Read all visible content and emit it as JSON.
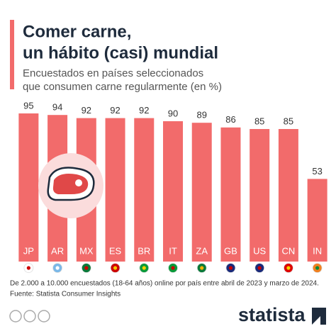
{
  "chart_data": {
    "type": "bar",
    "title": [
      "Comer carne,",
      "un hábito (casi) mundial"
    ],
    "subtitle": [
      "Encuestados en países seleccionados",
      "que consumen carne regularmente (en %)"
    ],
    "categories": [
      "JP",
      "AR",
      "MX",
      "ES",
      "BR",
      "IT",
      "ZA",
      "GB",
      "US",
      "CN",
      "IN"
    ],
    "values": [
      95,
      94,
      92,
      92,
      92,
      90,
      89,
      86,
      85,
      85,
      53
    ],
    "color": "#f26b6b",
    "ylim": [
      0,
      100
    ],
    "notes": [
      "De 2.000 a 10.000 encuestados (18-64 años) online por país entre abril de 2023 y marzo de 2024.",
      "Fuente: Statista Consumer Insights"
    ],
    "logo": "statista"
  }
}
